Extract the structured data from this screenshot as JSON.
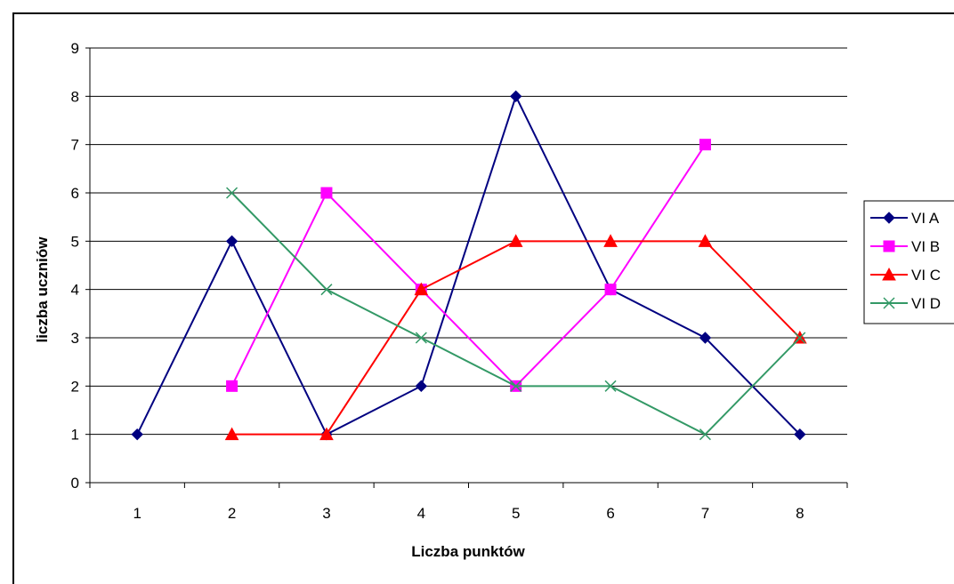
{
  "chart_data": {
    "type": "line",
    "xlabel": "Liczba punktów",
    "ylabel": "liczba uczniów",
    "categories": [
      "1",
      "2",
      "3",
      "4",
      "5",
      "6",
      "7",
      "8"
    ],
    "ylim": [
      0,
      9
    ],
    "yticks": [
      0,
      1,
      2,
      3,
      4,
      5,
      6,
      7,
      8,
      9
    ],
    "grid": true,
    "legend_position": "right",
    "series": [
      {
        "name": "VI A",
        "color": "#000080",
        "marker": "diamond",
        "values": [
          1,
          5,
          1,
          2,
          8,
          4,
          3,
          1
        ]
      },
      {
        "name": "VI B",
        "color": "#FF00FF",
        "marker": "square",
        "values": [
          null,
          2,
          6,
          4,
          2,
          4,
          7,
          null
        ]
      },
      {
        "name": "VI C",
        "color": "#FF0000",
        "marker": "triangle",
        "values": [
          null,
          1,
          1,
          4,
          5,
          5,
          5,
          3
        ]
      },
      {
        "name": "VI D",
        "color": "#339966",
        "marker": "x",
        "values": [
          null,
          6,
          4,
          3,
          2,
          2,
          1,
          3
        ]
      }
    ]
  }
}
